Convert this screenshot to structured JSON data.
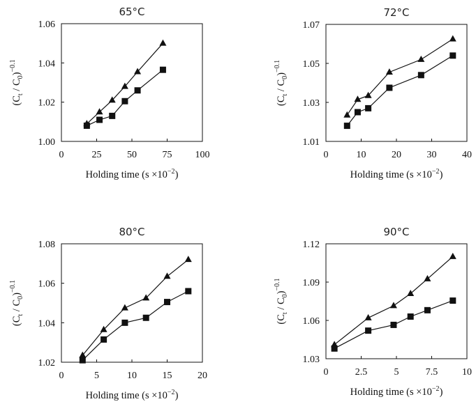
{
  "chart_data": [
    {
      "type": "line",
      "title": "65°C",
      "xlabel": "Holding time (s ×10",
      "xlabel_exp": "−2",
      "xlabel_close": ")",
      "ylabel": "(C_t / C_0)^-0.1",
      "xlim": [
        0,
        100
      ],
      "ylim": [
        1.0,
        1.06
      ],
      "xticks": [
        "0",
        "25",
        "50",
        "75",
        "100"
      ],
      "xtick_values": [
        0,
        25,
        50,
        75,
        100
      ],
      "yticks": [
        "1.00",
        "1.02",
        "1.04",
        "1.06"
      ],
      "ytick_values": [
        1.0,
        1.02,
        1.04,
        1.06
      ],
      "series": [
        {
          "marker": "triangle",
          "x": [
            18,
            27,
            36,
            45,
            54,
            72
          ],
          "y": [
            1.009,
            1.015,
            1.021,
            1.028,
            1.0355,
            1.05
          ]
        },
        {
          "marker": "square",
          "x": [
            18,
            27,
            36,
            45,
            54,
            72
          ],
          "y": [
            1.008,
            1.011,
            1.013,
            1.0205,
            1.026,
            1.0365
          ]
        }
      ]
    },
    {
      "type": "line",
      "title": "72°C",
      "xlabel": "Holding time (s ×10",
      "xlabel_exp": "−2",
      "xlabel_close": ")",
      "ylabel": "(C_t / C_0)^-0.1",
      "xlim": [
        0,
        40
      ],
      "ylim": [
        1.01,
        1.07
      ],
      "xticks": [
        "0",
        "10",
        "20",
        "30",
        "40"
      ],
      "xtick_values": [
        0,
        10,
        20,
        30,
        40
      ],
      "yticks": [
        "1.01",
        "1.03",
        "1.05",
        "1.07"
      ],
      "ytick_values": [
        1.01,
        1.03,
        1.05,
        1.07
      ],
      "series": [
        {
          "marker": "triangle",
          "x": [
            6,
            9,
            12,
            18,
            27,
            36
          ],
          "y": [
            1.0235,
            1.0315,
            1.0335,
            1.0455,
            1.052,
            1.0625
          ]
        },
        {
          "marker": "square",
          "x": [
            6,
            9,
            12,
            18,
            27,
            36
          ],
          "y": [
            1.018,
            1.025,
            1.027,
            1.0375,
            1.044,
            1.054
          ]
        }
      ]
    },
    {
      "type": "line",
      "title": "80°C",
      "xlabel": "Holding time (s ×10",
      "xlabel_exp": "−2",
      "xlabel_close": ")",
      "ylabel": "(C_t / C_0)^-0.1",
      "xlim": [
        0,
        20
      ],
      "ylim": [
        1.02,
        1.08
      ],
      "xticks": [
        "0",
        "5",
        "10",
        "15",
        "20"
      ],
      "xtick_values": [
        0,
        5,
        10,
        15,
        20
      ],
      "yticks": [
        "1.02",
        "1.04",
        "1.06",
        "1.08"
      ],
      "ytick_values": [
        1.02,
        1.04,
        1.06,
        1.08
      ],
      "series": [
        {
          "marker": "triangle",
          "x": [
            3,
            6,
            9,
            12,
            15,
            18
          ],
          "y": [
            1.0235,
            1.0365,
            1.0475,
            1.0525,
            1.0635,
            1.072
          ]
        },
        {
          "marker": "square",
          "x": [
            3,
            6,
            9,
            12,
            15,
            18
          ],
          "y": [
            1.021,
            1.0315,
            1.04,
            1.0425,
            1.0505,
            1.056
          ]
        }
      ]
    },
    {
      "type": "line",
      "title": "90°C",
      "xlabel": "Holding time (s ×10",
      "xlabel_exp": "−2",
      "xlabel_close": ")",
      "ylabel": "(C_t / C_0)^-0.1",
      "xlim": [
        0,
        10
      ],
      "ylim": [
        1.03,
        1.12
      ],
      "xticks": [
        "0",
        "2.5",
        "5",
        "7.5",
        "10"
      ],
      "xtick_values": [
        0,
        2.5,
        5,
        7.5,
        10
      ],
      "yticks": [
        "1.03",
        "1.06",
        "1.09",
        "1.12"
      ],
      "ytick_values": [
        1.03,
        1.06,
        1.09,
        1.12
      ],
      "series": [
        {
          "marker": "triangle",
          "x": [
            0.6,
            3,
            4.8,
            6,
            7.2,
            9
          ],
          "y": [
            1.041,
            1.062,
            1.0715,
            1.081,
            1.0925,
            1.11
          ]
        },
        {
          "marker": "square",
          "x": [
            0.6,
            3,
            4.8,
            6,
            7.2,
            9
          ],
          "y": [
            1.038,
            1.052,
            1.0565,
            1.063,
            1.068,
            1.0755
          ]
        }
      ]
    }
  ],
  "ylabel_parts": {
    "open": "(C",
    "sub_t": "t",
    "mid": " / C",
    "sub_0": "0",
    "close": ")",
    "exp": "−0.1"
  },
  "colors": {
    "line": "#111111",
    "marker": "#111111",
    "axis": "#111111",
    "background": "#ffffff"
  }
}
